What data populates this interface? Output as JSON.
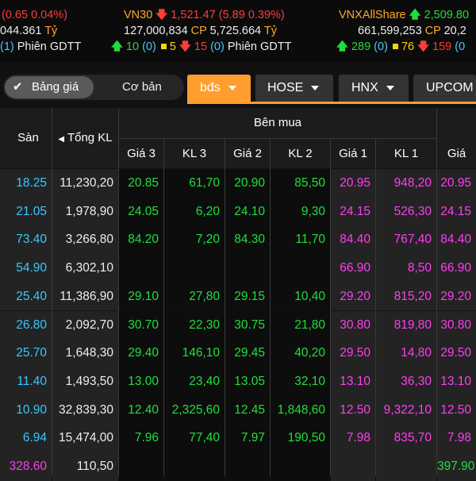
{
  "summary": {
    "col1": {
      "change": "(0.65 0.04%)",
      "value": "044.361",
      "unit": "Tỷ",
      "session_prefix": "(1)",
      "session_label": "Phiên GDTT"
    },
    "vn30": {
      "name": "VN30",
      "index": "1,521.47",
      "change": "(5.89 0.39%)",
      "volume": "127,000,834",
      "cp_label": "CP",
      "value": "5,725.664",
      "unit": "Tỷ",
      "up_count": "10",
      "up_sub": "(0)",
      "ref_count": "5",
      "down_count": "15",
      "down_sub": "(0)",
      "session_label": "Phiên GDTT"
    },
    "vnxallshare": {
      "name": "VNXAllShare",
      "index": "2,509.80",
      "volume": "661,599,253",
      "cp_label": "CP",
      "value": "20,2",
      "up_count": "289",
      "up_sub": "(0)",
      "ref_count": "76",
      "down_count": "159",
      "down_sub": "(0"
    }
  },
  "tabs": {
    "toggle_on": "Bảng giá",
    "toggle_off": "Cơ bản",
    "items": [
      {
        "label": "bđs",
        "active": true
      },
      {
        "label": "HOSE",
        "active": false
      },
      {
        "label": "HNX",
        "active": false
      },
      {
        "label": "UPCOM",
        "active": false
      }
    ]
  },
  "table": {
    "headers": {
      "san": "Sàn",
      "tong_kl": "Tổng KL",
      "ben_mua": "Bên mua",
      "gia3": "Giá 3",
      "kl3": "KL 3",
      "gia2": "Giá 2",
      "kl2": "KL 2",
      "gia1": "Giá 1",
      "kl1": "KL 1",
      "gia": "Giá"
    },
    "rows": [
      {
        "san": "18.25",
        "tong": "11,230,20",
        "g3": "20.85",
        "k3": "61,70",
        "g2": "20.90",
        "k2": "85,50",
        "g1": "20.95",
        "k1": "948,20",
        "gia": "20.95"
      },
      {
        "san": "21.05",
        "tong": "1,978,90",
        "g3": "24.05",
        "k3": "6,20",
        "g2": "24.10",
        "k2": "9,30",
        "g1": "24.15",
        "k1": "526,30",
        "gia": "24.15"
      },
      {
        "san": "73.40",
        "tong": "3,266,80",
        "g3": "84.20",
        "k3": "7,20",
        "g2": "84.30",
        "k2": "11,70",
        "g1": "84.40",
        "k1": "767,40",
        "gia": "84.40"
      },
      {
        "san": "54.90",
        "tong": "6,302,10",
        "g3": "",
        "k3": "",
        "g2": "",
        "k2": "",
        "g1": "66.90",
        "k1": "8,50",
        "gia": "66.90"
      },
      {
        "san": "25.40",
        "tong": "11,386,90",
        "g3": "29.10",
        "k3": "27,80",
        "g2": "29.15",
        "k2": "10,40",
        "g1": "29.20",
        "k1": "815,20",
        "gia": "29.20"
      },
      {
        "san": "26.80",
        "tong": "2,092,70",
        "g3": "30.70",
        "k3": "22,30",
        "g2": "30.75",
        "k2": "21,80",
        "g1": "30.80",
        "k1": "819,80",
        "gia": "30.80"
      },
      {
        "san": "25.70",
        "tong": "1,648,30",
        "g3": "29.40",
        "k3": "146,10",
        "g2": "29.45",
        "k2": "40,20",
        "g1": "29.50",
        "k1": "14,80",
        "gia": "29.50"
      },
      {
        "san": "11.40",
        "tong": "1,493,50",
        "g3": "13.00",
        "k3": "23,40",
        "g2": "13.05",
        "k2": "32,10",
        "g1": "13.10",
        "k1": "36,30",
        "gia": "13.10"
      },
      {
        "san": "10.90",
        "tong": "32,839,30",
        "g3": "12.40",
        "k3": "2,325,60",
        "g2": "12.45",
        "k2": "1,848,60",
        "g1": "12.50",
        "k1": "9,322,10",
        "gia": "12.50"
      },
      {
        "san": "6.94",
        "tong": "15,474,00",
        "g3": "7.96",
        "k3": "77,40",
        "g2": "7.97",
        "k2": "190,50",
        "g1": "7.98",
        "k1": "835,70",
        "gia": "7.98"
      },
      {
        "san": "328.60",
        "tong": "110,50",
        "g3": "",
        "k3": "",
        "g2": "",
        "k2": "",
        "g1": "",
        "k1": "",
        "gia": "397.90"
      }
    ]
  },
  "colors": {
    "accent_orange": "#ff9d2e",
    "up_green": "#1fe03a",
    "down_red": "#ff3b3b",
    "ceiling_pink": "#ff3ef0",
    "floor_cyan": "#38c8ff",
    "ref_yellow": "#ffd400"
  },
  "icons": [
    "arrow-up-icon",
    "arrow-down-icon",
    "check-icon",
    "caret-down-icon",
    "sort-left-icon",
    "ref-square-icon"
  ]
}
